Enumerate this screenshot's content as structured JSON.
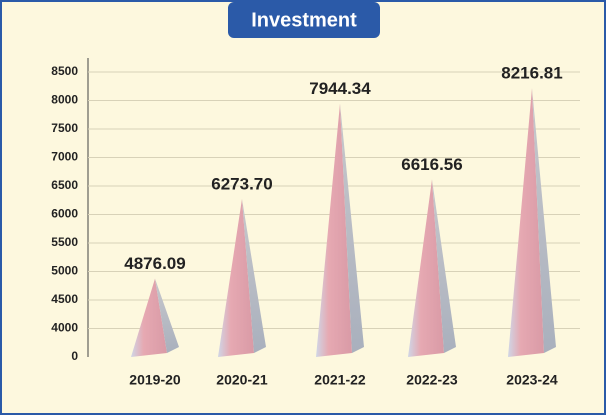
{
  "chart_data": {
    "type": "pyramid",
    "title": "Investment",
    "categories": [
      "2019-20",
      "2020-21",
      "2021-22",
      "2022-23",
      "2023-24"
    ],
    "values": [
      4876.09,
      6273.7,
      7944.34,
      6616.56,
      8216.81
    ],
    "value_labels": [
      "4876.09",
      "6273.70",
      "7944.34",
      "6616.56",
      "8216.81"
    ],
    "color": "#e8a8ae",
    "ylim": [
      0,
      8500
    ],
    "yticks": [
      0,
      4000,
      4500,
      5000,
      5500,
      6000,
      6500,
      7000,
      7500,
      8000,
      8500
    ],
    "grid": true
  }
}
